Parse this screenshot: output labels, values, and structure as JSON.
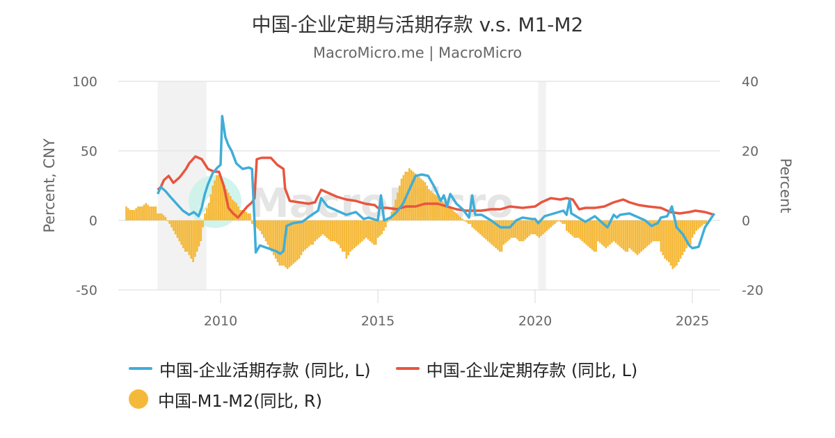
{
  "header": {
    "title": "中国-企业定期与活期存款 v.s. M1-M2",
    "subtitle": "MacroMicro.me | MacroMicro"
  },
  "axes": {
    "left_title": "Percent, CNY",
    "right_title": "Percent",
    "left_ticks": [
      "100",
      "50",
      "0",
      "-50"
    ],
    "right_ticks": [
      "40",
      "20",
      "0",
      "-20"
    ],
    "x_ticks": [
      "2010",
      "2015",
      "2020",
      "2025"
    ]
  },
  "legend": {
    "items": [
      {
        "label": "中国-企业活期存款 (同比, L)",
        "color": "#3fadd8",
        "type": "line"
      },
      {
        "label": "中国-企业定期存款 (同比, L)",
        "color": "#e8553e",
        "type": "line"
      },
      {
        "label": "中国-M1-M2(同比, R)",
        "color": "#f5b93a",
        "type": "dot"
      }
    ]
  },
  "watermark": "MacroMicro",
  "colors": {
    "demand": "#3fadd8",
    "time": "#e8553e",
    "m1m2": "#f5b93a",
    "shade": "#f2f2f2",
    "grid": "#e6e6e6"
  },
  "chart_data": {
    "type": "line+bar",
    "title": "中国-企业定期与活期存款 v.s. M1-M2",
    "subtitle": "MacroMicro.me | MacroMicro",
    "xlabel": "",
    "ylabel_left": "Percent, CNY",
    "ylabel_right": "Percent",
    "ylim_left": [
      -50,
      100
    ],
    "ylim_right": [
      -20,
      40
    ],
    "xlim": [
      2006.7,
      2025.9
    ],
    "grid": true,
    "legend_position": "bottom",
    "shaded_periods": [
      [
        2008.0,
        2009.55
      ],
      [
        2020.1,
        2020.35
      ]
    ],
    "series": [
      {
        "name": "中国-企业活期存款 (同比, L)",
        "axis": "left",
        "type": "line",
        "color": "#3fadd8",
        "x": [
          2008.0,
          2008.1,
          2008.25,
          2008.4,
          2008.6,
          2008.8,
          2009.0,
          2009.15,
          2009.3,
          2009.4,
          2009.5,
          2009.6,
          2009.75,
          2009.9,
          2010.0,
          2010.05,
          2010.15,
          2010.25,
          2010.35,
          2010.5,
          2010.7,
          2010.9,
          2011.0,
          2011.08,
          2011.12,
          2011.25,
          2011.5,
          2011.75,
          2011.9,
          2012.0,
          2012.1,
          2012.3,
          2012.6,
          2012.9,
          2013.1,
          2013.2,
          2013.4,
          2013.7,
          2014.0,
          2014.3,
          2014.55,
          2014.7,
          2015.0,
          2015.1,
          2015.2,
          2015.4,
          2015.6,
          2015.8,
          2016.0,
          2016.2,
          2016.4,
          2016.6,
          2016.8,
          2017.0,
          2017.1,
          2017.2,
          2017.3,
          2017.5,
          2017.7,
          2017.9,
          2018.0,
          2018.1,
          2018.3,
          2018.6,
          2018.9,
          2019.2,
          2019.4,
          2019.6,
          2019.9,
          2020.0,
          2020.1,
          2020.3,
          2020.6,
          2020.9,
          2021.0,
          2021.1,
          2021.15,
          2021.3,
          2021.6,
          2021.9,
          2022.1,
          2022.3,
          2022.5,
          2022.6,
          2022.7,
          2023.0,
          2023.2,
          2023.5,
          2023.7,
          2023.9,
          2024.0,
          2024.2,
          2024.35,
          2024.5,
          2024.7,
          2024.9,
          2025.0,
          2025.2,
          2025.4,
          2025.7
        ],
        "y": [
          19,
          24,
          21,
          17,
          12,
          7,
          4,
          6,
          3,
          9,
          19,
          26,
          34,
          38,
          40,
          75,
          60,
          54,
          50,
          41,
          37,
          38,
          37,
          -1,
          -23,
          -18,
          -20,
          -22,
          -24,
          -22,
          -4,
          -2,
          -1,
          4,
          7,
          16,
          10,
          7,
          4,
          6,
          1,
          2,
          0,
          18,
          0,
          2,
          6,
          12,
          22,
          32,
          33,
          32,
          24,
          14,
          18,
          10,
          19,
          12,
          8,
          2,
          18,
          4,
          4,
          0,
          -5,
          -5,
          0,
          2,
          1,
          1,
          -2,
          3,
          5,
          7,
          4,
          15,
          5,
          3,
          -1,
          3,
          -1,
          -5,
          4,
          2,
          4,
          5,
          3,
          0,
          -4,
          -2,
          2,
          3,
          10,
          -5,
          -10,
          -18,
          -20,
          -19,
          -5,
          5
        ]
      },
      {
        "name": "中国-企业定期存款 (同比, L)",
        "axis": "left",
        "type": "line",
        "color": "#e8553e",
        "x": [
          2008.0,
          2008.1,
          2008.2,
          2008.35,
          2008.5,
          2008.7,
          2008.9,
          2009.0,
          2009.2,
          2009.4,
          2009.6,
          2009.8,
          2009.95,
          2010.1,
          2010.25,
          2010.4,
          2010.55,
          2010.7,
          2010.85,
          2011.0,
          2011.08,
          2011.15,
          2011.3,
          2011.6,
          2011.8,
          2012.0,
          2012.05,
          2012.2,
          2012.5,
          2012.8,
          2013.0,
          2013.2,
          2013.4,
          2013.7,
          2014.0,
          2014.3,
          2014.6,
          2014.9,
          2015.0,
          2015.3,
          2015.6,
          2015.9,
          2016.2,
          2016.5,
          2016.9,
          2017.2,
          2017.5,
          2017.8,
          2018.0,
          2018.3,
          2018.6,
          2018.9,
          2019.2,
          2019.6,
          2020.0,
          2020.2,
          2020.5,
          2020.8,
          2021.0,
          2021.2,
          2021.4,
          2021.6,
          2021.9,
          2022.2,
          2022.5,
          2022.8,
          2023.0,
          2023.3,
          2023.6,
          2024.0,
          2024.3,
          2024.6,
          2024.9,
          2025.1,
          2025.4,
          2025.7
        ],
        "y": [
          22,
          24,
          29,
          32,
          27,
          31,
          37,
          41,
          46,
          44,
          37,
          35,
          35,
          25,
          9,
          5,
          2,
          6,
          10,
          13,
          16,
          44,
          45,
          45,
          40,
          37,
          23,
          14,
          13,
          12,
          13,
          22,
          20,
          17,
          15,
          14,
          12,
          11,
          9,
          9,
          8,
          10,
          10,
          12,
          12,
          10,
          8,
          7,
          7,
          7,
          8,
          8,
          10,
          9,
          10,
          13,
          16,
          15,
          16,
          15,
          8,
          9,
          9,
          10,
          13,
          15,
          13,
          11,
          10,
          9,
          6,
          5,
          6,
          7,
          6,
          4
        ],
        "note": "approximate, digitised from pixels"
      },
      {
        "name": "中国-M1-M2(同比, R)",
        "axis": "right",
        "type": "bar",
        "color": "#f5b93a",
        "x_start": 2007.0,
        "step_months": 1,
        "values_quarterly_samples": {
          "2007": [
            4,
            3,
            3,
            4,
            4,
            5,
            4,
            4
          ],
          "2008": [
            2,
            2,
            1,
            -1,
            -3,
            -5,
            -7,
            -9
          ],
          "2009": [
            -10,
            -12,
            -9,
            -6,
            2,
            5,
            10,
            13
          ],
          "2010": [
            12,
            10,
            8,
            6,
            5,
            3,
            3,
            2
          ],
          "2011": [
            -1,
            -2,
            -3,
            -5,
            -7,
            -9,
            -11,
            -13
          ],
          "2012": [
            -13,
            -14,
            -13,
            -12,
            -11,
            -9,
            -8,
            -7
          ],
          "2013": [
            -6,
            -5,
            -4,
            -5,
            -6,
            -6,
            -7,
            -9
          ],
          "2014": [
            -11,
            -9,
            -8,
            -7,
            -6,
            -5,
            -6,
            -7
          ],
          "2015": [
            -5,
            -4,
            -2,
            1,
            4,
            8,
            12,
            14
          ],
          "2016": [
            15,
            14,
            13,
            12,
            11,
            9,
            8,
            7
          ],
          "2017": [
            6,
            5,
            4,
            3,
            2,
            1,
            0,
            -1
          ],
          "2018": [
            -2,
            -3,
            -4,
            -5,
            -6,
            -7,
            -8,
            -9
          ],
          "2019": [
            -7,
            -6,
            -5,
            -5,
            -6,
            -6,
            -5,
            -4
          ],
          "2020": [
            -4,
            -5,
            -4,
            -3,
            -2,
            -1,
            0,
            -1
          ],
          "2021": [
            -3,
            -4,
            -5,
            -5,
            -6,
            -7,
            -8,
            -9
          ],
          "2022": [
            -6,
            -7,
            -8,
            -7,
            -6,
            -7,
            -8,
            -9
          ],
          "2023": [
            -8,
            -9,
            -10,
            -9,
            -8,
            -7,
            -6,
            -6
          ],
          "2024": [
            -9,
            -11,
            -12,
            -14,
            -13,
            -11,
            -9,
            -7
          ],
          "2025": [
            -5,
            -3,
            -2,
            -1
          ]
        }
      }
    ]
  }
}
